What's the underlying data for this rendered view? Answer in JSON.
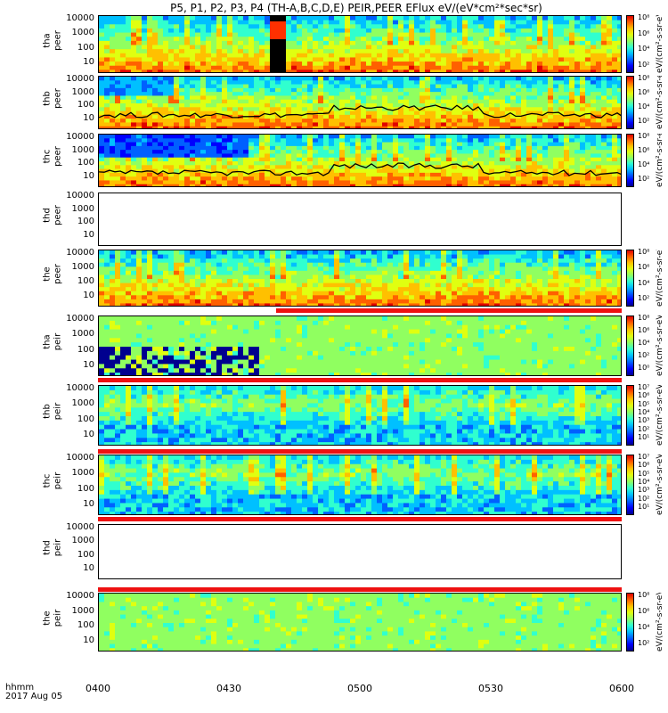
{
  "chart_data": {
    "type": "heatmap",
    "title": "P5, P1, P2, P3, P4 (TH-A,B,C,D,E) PEIR,PEER EFlux eV/(eV*cm²*sec*sr)",
    "x_axis": {
      "tick_labels": [
        "0400",
        "0430",
        "0500",
        "0530",
        "0600"
      ],
      "label_line1": "hhmm",
      "label_line2": "2017 Aug 05"
    },
    "y_ticks": [
      "10000",
      "1000",
      "100",
      "10"
    ],
    "z_axis_label": "eV/(cm²-s-sr-eV)",
    "panels": [
      {
        "probe": "tha",
        "product": "peer",
        "ylabel1": "tha",
        "ylabel2": "peer",
        "has_data": true,
        "cbar_ticks": [
          "10⁸",
          "10⁶",
          "10⁴",
          "10²"
        ]
      },
      {
        "probe": "thb",
        "product": "peer",
        "ylabel1": "thb",
        "ylabel2": "peer",
        "has_data": true,
        "cbar_ticks": [
          "10⁸",
          "10⁶",
          "10⁴",
          "10²"
        ]
      },
      {
        "probe": "thc",
        "product": "peer",
        "ylabel1": "thc",
        "ylabel2": "peer",
        "has_data": true,
        "cbar_ticks": [
          "10⁸",
          "10⁶",
          "10⁴",
          "10²"
        ]
      },
      {
        "probe": "thd",
        "product": "peer",
        "ylabel1": "thd",
        "ylabel2": "peer",
        "has_data": false,
        "cbar_ticks": []
      },
      {
        "probe": "the",
        "product": "peer",
        "ylabel1": "the",
        "ylabel2": "peer",
        "has_data": true,
        "cbar_ticks": [
          "10⁸",
          "10⁶",
          "10⁴",
          "10²"
        ]
      },
      {
        "probe": "tha",
        "product": "peir",
        "ylabel1": "tha",
        "ylabel2": "peir",
        "has_data": true,
        "cbar_ticks": [
          "10⁸",
          "10⁶",
          "10⁴",
          "10²",
          "10⁰"
        ]
      },
      {
        "probe": "thb",
        "product": "peir",
        "ylabel1": "thb",
        "ylabel2": "peir",
        "has_data": true,
        "cbar_ticks": [
          "10⁷",
          "10⁶",
          "10⁵",
          "10⁴",
          "10³",
          "10²",
          "10¹"
        ]
      },
      {
        "probe": "thc",
        "product": "peir",
        "ylabel1": "thc",
        "ylabel2": "peir",
        "has_data": true,
        "cbar_ticks": [
          "10⁷",
          "10⁶",
          "10⁵",
          "10⁴",
          "10³",
          "10²",
          "10¹"
        ]
      },
      {
        "probe": "thd",
        "product": "peir",
        "ylabel1": "thd",
        "ylabel2": "peir",
        "has_data": false,
        "cbar_ticks": []
      },
      {
        "probe": "the",
        "product": "peir",
        "ylabel1": "the",
        "ylabel2": "peir",
        "has_data": true,
        "cbar_ticks": [
          "10⁸",
          "10⁶",
          "10⁴",
          "10²"
        ]
      }
    ]
  }
}
